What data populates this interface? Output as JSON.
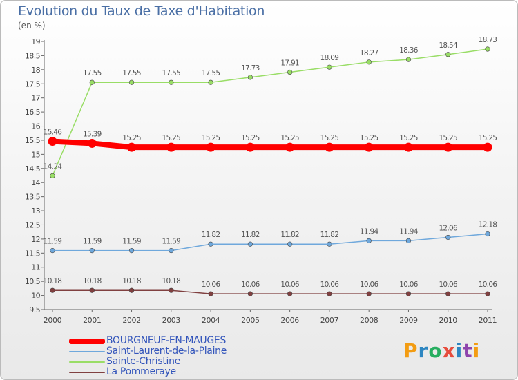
{
  "title": "Evolution du Taux de Taxe d'Habitation",
  "unit": "(en %)",
  "logo_letters": [
    "P",
    "r",
    "o",
    "x",
    "i",
    "t",
    "i"
  ],
  "chart_data": {
    "type": "line",
    "x": [
      "2000",
      "2001",
      "2002",
      "2003",
      "2004",
      "2005",
      "2006",
      "2007",
      "2008",
      "2009",
      "2010",
      "2011"
    ],
    "ylim": [
      9.5,
      19
    ],
    "yticks": [
      "9.5",
      "10",
      "10.5",
      "11",
      "11.5",
      "12",
      "12.5",
      "13",
      "13.5",
      "14",
      "14.5",
      "15",
      "15.5",
      "16",
      "16.5",
      "17",
      "17.5",
      "18",
      "18.5",
      "19"
    ],
    "grid": false,
    "legend_position": "bottom-left",
    "series": [
      {
        "name": "BOURGNEUF-EN-MAUGES",
        "color": "#ff0000",
        "values": [
          15.46,
          15.39,
          15.25,
          15.25,
          15.25,
          15.25,
          15.25,
          15.25,
          15.25,
          15.25,
          15.25,
          15.25
        ],
        "labels": [
          "15.46",
          "15.39",
          "15.25",
          "15.25",
          "15.25",
          "15.25",
          "15.25",
          "15.25",
          "15.25",
          "15.25",
          "15.25",
          "15.25"
        ]
      },
      {
        "name": "Saint-Laurent-de-la-Plaine",
        "color": "#6fa8dc",
        "values": [
          11.59,
          11.59,
          11.59,
          11.59,
          11.82,
          11.82,
          11.82,
          11.82,
          11.94,
          11.94,
          12.06,
          12.18
        ],
        "labels": [
          "11.59",
          "11.59",
          "11.59",
          "11.59",
          "11.82",
          "11.82",
          "11.82",
          "11.82",
          "11.94",
          "11.94",
          "12.06",
          "12.18"
        ]
      },
      {
        "name": "Sainte-Christine",
        "color": "#99dd66",
        "values": [
          14.24,
          17.55,
          17.55,
          17.55,
          17.55,
          17.73,
          17.91,
          18.09,
          18.27,
          18.36,
          18.54,
          18.73
        ],
        "labels": [
          "14.24",
          "17.55",
          "17.55",
          "17.55",
          "17.55",
          "17.73",
          "17.91",
          "18.09",
          "18.27",
          "18.36",
          "18.54",
          "18.73"
        ]
      },
      {
        "name": "La Pommeraye",
        "color": "#804040",
        "values": [
          10.18,
          10.18,
          10.18,
          10.18,
          10.06,
          10.06,
          10.06,
          10.06,
          10.06,
          10.06,
          10.06,
          10.06
        ],
        "labels": [
          "10.18",
          "10.18",
          "10.18",
          "10.18",
          "10.06",
          "10.06",
          "10.06",
          "10.06",
          "10.06",
          "10.06",
          "10.06",
          "10.06"
        ]
      }
    ]
  }
}
